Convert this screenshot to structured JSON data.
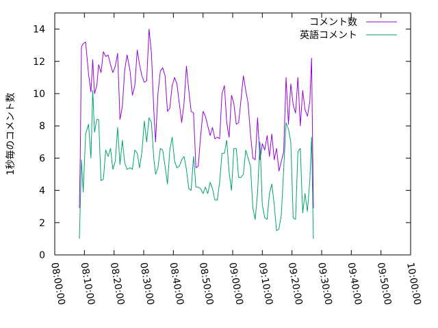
{
  "chart_data": {
    "type": "line",
    "ylabel": "1秒毎のコメント数",
    "ylim": [
      0,
      15
    ],
    "yticks": [
      0,
      2,
      4,
      6,
      8,
      10,
      12,
      14
    ],
    "xticks": [
      "08:00:00",
      "08:10:00",
      "08:20:00",
      "08:30:00",
      "08:40:00",
      "08:50:00",
      "09:00:00",
      "09:10:00",
      "09:20:00",
      "09:30:00",
      "09:40:00",
      "09:50:00",
      "10:00:00"
    ],
    "xlim_minutes": [
      0,
      120
    ],
    "legend_position": "top-right",
    "grid": false,
    "series": [
      {
        "name": "コメント数",
        "color": "#9400d3",
        "points": [
          [
            8.3,
            2.9
          ],
          [
            8.6,
            6.2
          ],
          [
            9.0,
            12.9
          ],
          [
            9.6,
            13.1
          ],
          [
            10.4,
            13.2
          ],
          [
            11.4,
            11.2
          ],
          [
            12.2,
            10.1
          ],
          [
            12.8,
            12.1
          ],
          [
            13.4,
            10.0
          ],
          [
            14.2,
            10.5
          ],
          [
            14.8,
            11.8
          ],
          [
            15.6,
            11.3
          ],
          [
            16.4,
            12.6
          ],
          [
            17.2,
            12.3
          ],
          [
            18.0,
            12.4
          ],
          [
            18.8,
            11.8
          ],
          [
            19.6,
            11.3
          ],
          [
            20.4,
            11.7
          ],
          [
            21.2,
            12.5
          ],
          [
            22.0,
            8.4
          ],
          [
            22.8,
            9.2
          ],
          [
            23.6,
            11.5
          ],
          [
            24.4,
            12.4
          ],
          [
            25.4,
            11.4
          ],
          [
            26.2,
            9.9
          ],
          [
            27.0,
            10.5
          ],
          [
            27.8,
            12.7
          ],
          [
            28.6,
            11.8
          ],
          [
            29.4,
            11.1
          ],
          [
            30.2,
            10.7
          ],
          [
            31.0,
            10.8
          ],
          [
            31.8,
            14.0
          ],
          [
            32.6,
            12.5
          ],
          [
            33.4,
            9.0
          ],
          [
            34.0,
            7.0
          ],
          [
            34.8,
            10.0
          ],
          [
            35.6,
            11.4
          ],
          [
            36.4,
            11.6
          ],
          [
            37.2,
            11.1
          ],
          [
            38.0,
            8.9
          ],
          [
            38.8,
            9.1
          ],
          [
            39.6,
            10.5
          ],
          [
            40.4,
            11.0
          ],
          [
            41.2,
            10.6
          ],
          [
            42.0,
            9.4
          ],
          [
            42.8,
            8.2
          ],
          [
            43.6,
            9.4
          ],
          [
            44.4,
            11.7
          ],
          [
            45.2,
            10.2
          ],
          [
            46.0,
            8.9
          ],
          [
            46.8,
            8.8
          ],
          [
            47.6,
            5.4
          ],
          [
            48.4,
            5.5
          ],
          [
            49.2,
            7.4
          ],
          [
            50.0,
            8.9
          ],
          [
            50.8,
            8.6
          ],
          [
            51.6,
            8.0
          ],
          [
            52.4,
            7.4
          ],
          [
            53.2,
            7.9
          ],
          [
            54.0,
            7.2
          ],
          [
            54.8,
            7.3
          ],
          [
            55.6,
            7.2
          ],
          [
            56.4,
            10.0
          ],
          [
            57.2,
            10.5
          ],
          [
            58.0,
            8.2
          ],
          [
            58.8,
            7.3
          ],
          [
            59.6,
            9.9
          ],
          [
            60.4,
            9.4
          ],
          [
            61.2,
            8.1
          ],
          [
            62.0,
            8.2
          ],
          [
            62.8,
            9.6
          ],
          [
            63.6,
            11.1
          ],
          [
            64.4,
            10.2
          ],
          [
            65.2,
            9.4
          ],
          [
            66.0,
            7.5
          ],
          [
            66.8,
            6.0
          ],
          [
            67.6,
            5.9
          ],
          [
            68.4,
            8.5
          ],
          [
            69.2,
            5.9
          ],
          [
            70.0,
            6.9
          ],
          [
            70.8,
            6.5
          ],
          [
            71.6,
            7.4
          ],
          [
            72.4,
            6.1
          ],
          [
            73.2,
            7.5
          ],
          [
            74.0,
            5.9
          ],
          [
            74.8,
            6.6
          ],
          [
            75.6,
            5.2
          ],
          [
            76.4,
            5.8
          ],
          [
            77.2,
            6.4
          ],
          [
            78.0,
            11.0
          ],
          [
            78.8,
            8.1
          ],
          [
            79.6,
            10.6
          ],
          [
            80.4,
            9.3
          ],
          [
            81.2,
            8.8
          ],
          [
            82.0,
            11.0
          ],
          [
            82.8,
            8.0
          ],
          [
            83.6,
            10.2
          ],
          [
            84.4,
            9.0
          ],
          [
            85.2,
            8.6
          ],
          [
            86.0,
            9.5
          ],
          [
            86.6,
            12.2
          ],
          [
            87.2,
            2.9
          ]
        ]
      },
      {
        "name": "英語コメント",
        "color": "#009e73",
        "points": [
          [
            8.3,
            1.0
          ],
          [
            8.6,
            3.1
          ],
          [
            9.0,
            5.9
          ],
          [
            9.6,
            3.9
          ],
          [
            10.4,
            7.5
          ],
          [
            11.4,
            8.1
          ],
          [
            12.2,
            6.0
          ],
          [
            12.8,
            10.2
          ],
          [
            13.4,
            7.6
          ],
          [
            14.2,
            8.4
          ],
          [
            14.8,
            8.4
          ],
          [
            15.6,
            4.6
          ],
          [
            16.4,
            4.7
          ],
          [
            17.2,
            6.5
          ],
          [
            18.0,
            6.1
          ],
          [
            18.8,
            6.6
          ],
          [
            19.6,
            5.3
          ],
          [
            20.4,
            5.8
          ],
          [
            21.2,
            7.9
          ],
          [
            22.0,
            5.6
          ],
          [
            22.8,
            7.1
          ],
          [
            23.6,
            5.7
          ],
          [
            24.4,
            5.3
          ],
          [
            25.4,
            5.4
          ],
          [
            26.2,
            5.3
          ],
          [
            27.0,
            6.5
          ],
          [
            27.8,
            6.3
          ],
          [
            28.6,
            5.4
          ],
          [
            29.4,
            6.4
          ],
          [
            30.2,
            8.3
          ],
          [
            31.0,
            7.0
          ],
          [
            31.8,
            8.5
          ],
          [
            32.6,
            8.2
          ],
          [
            33.4,
            6.0
          ],
          [
            34.0,
            5.0
          ],
          [
            34.8,
            5.4
          ],
          [
            35.6,
            6.6
          ],
          [
            36.4,
            6.5
          ],
          [
            37.2,
            5.5
          ],
          [
            38.0,
            4.4
          ],
          [
            38.8,
            6.5
          ],
          [
            39.6,
            7.3
          ],
          [
            40.4,
            5.8
          ],
          [
            41.2,
            5.4
          ],
          [
            42.0,
            5.5
          ],
          [
            42.8,
            5.9
          ],
          [
            43.6,
            6.1
          ],
          [
            44.4,
            5.3
          ],
          [
            45.2,
            4.1
          ],
          [
            46.0,
            4.0
          ],
          [
            46.8,
            6.1
          ],
          [
            47.6,
            4.2
          ],
          [
            48.4,
            4.2
          ],
          [
            49.2,
            4.1
          ],
          [
            50.0,
            3.8
          ],
          [
            50.8,
            4.2
          ],
          [
            51.6,
            3.8
          ],
          [
            52.4,
            4.5
          ],
          [
            53.2,
            4.1
          ],
          [
            54.0,
            3.4
          ],
          [
            54.8,
            3.4
          ],
          [
            55.6,
            4.5
          ],
          [
            56.4,
            6.3
          ],
          [
            57.2,
            6.3
          ],
          [
            58.0,
            7.1
          ],
          [
            58.8,
            5.1
          ],
          [
            59.6,
            4.0
          ],
          [
            60.4,
            6.6
          ],
          [
            61.2,
            6.6
          ],
          [
            62.0,
            4.8
          ],
          [
            62.8,
            4.8
          ],
          [
            63.6,
            5.0
          ],
          [
            64.4,
            6.5
          ],
          [
            65.2,
            6.0
          ],
          [
            66.0,
            5.5
          ],
          [
            66.8,
            2.9
          ],
          [
            67.6,
            2.2
          ],
          [
            68.4,
            3.9
          ],
          [
            69.2,
            7.0
          ],
          [
            70.0,
            3.1
          ],
          [
            70.8,
            2.3
          ],
          [
            71.6,
            2.2
          ],
          [
            72.4,
            3.8
          ],
          [
            73.2,
            4.4
          ],
          [
            74.0,
            3.1
          ],
          [
            74.8,
            1.5
          ],
          [
            75.6,
            1.6
          ],
          [
            76.4,
            2.5
          ],
          [
            77.2,
            5.3
          ],
          [
            78.0,
            8.2
          ],
          [
            78.8,
            7.8
          ],
          [
            79.6,
            7.0
          ],
          [
            80.4,
            2.3
          ],
          [
            81.2,
            2.2
          ],
          [
            82.0,
            6.4
          ],
          [
            82.8,
            6.6
          ],
          [
            83.6,
            2.6
          ],
          [
            84.4,
            3.8
          ],
          [
            85.2,
            2.7
          ],
          [
            86.0,
            4.6
          ],
          [
            86.6,
            7.3
          ],
          [
            87.2,
            1.0
          ]
        ]
      }
    ]
  }
}
